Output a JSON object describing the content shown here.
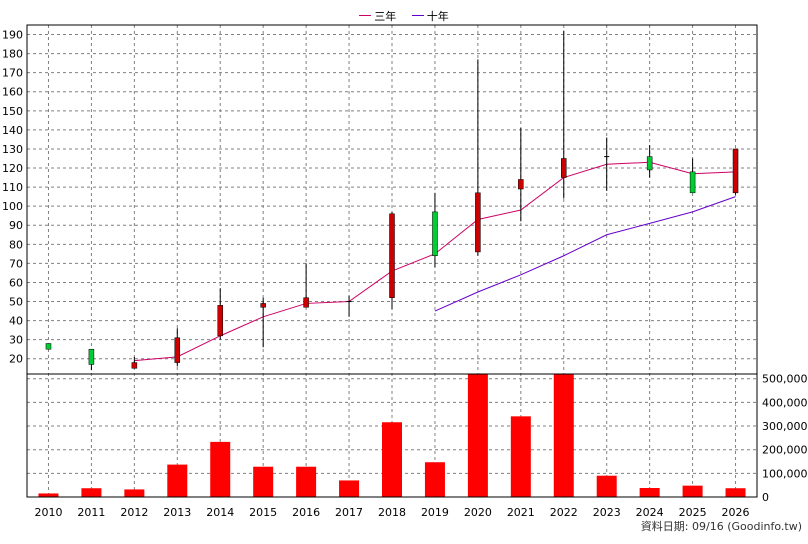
{
  "legend": {
    "items": [
      {
        "label": "三年",
        "color": "#cc0066"
      },
      {
        "label": "十年",
        "color": "#6600cc"
      }
    ]
  },
  "source": "資料日期: 09/16  (Goodinfo.tw)",
  "colors": {
    "up": "#00cc33",
    "down": "#cc0000",
    "flat": "#000000",
    "grid": "#808080",
    "volume": "#ff0000",
    "ma3": "#cc0066",
    "ma10": "#6600cc"
  },
  "chart_data": [
    {
      "type": "candlestick",
      "categories": [
        "2010",
        "2011",
        "2012",
        "2013",
        "2014",
        "2015",
        "2016",
        "2017",
        "2018",
        "2019",
        "2020",
        "2021",
        "2022",
        "2023",
        "2024",
        "2025",
        "2026"
      ],
      "y_ticks": [
        20,
        30,
        40,
        50,
        60,
        70,
        80,
        90,
        100,
        110,
        120,
        130,
        140,
        150,
        160,
        170,
        180,
        190
      ],
      "ylim": [
        12,
        195
      ],
      "grid": true,
      "candles": [
        {
          "o": 25,
          "h": 28,
          "l": 25,
          "c": 28
        },
        {
          "o": 17,
          "h": 25,
          "l": 14,
          "c": 25
        },
        {
          "o": 18,
          "h": 21,
          "l": 15,
          "c": 15
        },
        {
          "o": 31,
          "h": 36,
          "l": 16,
          "c": 18
        },
        {
          "o": 48,
          "h": 57,
          "l": 30,
          "c": 32
        },
        {
          "o": 49,
          "h": 52,
          "l": 26,
          "c": 47
        },
        {
          "o": 52,
          "h": 70,
          "l": 47,
          "c": 47
        },
        {
          "o": 50,
          "h": 53,
          "l": 42,
          "c": 50
        },
        {
          "o": 96,
          "h": 97,
          "l": 46,
          "c": 52
        },
        {
          "o": 74,
          "h": 107,
          "l": 68,
          "c": 97
        },
        {
          "o": 107,
          "h": 177,
          "l": 74,
          "c": 76
        },
        {
          "o": 114,
          "h": 141,
          "l": 92,
          "c": 109
        },
        {
          "o": 125,
          "h": 192,
          "l": 104,
          "c": 115
        },
        {
          "o": 126,
          "h": 136,
          "l": 108,
          "c": 126
        },
        {
          "o": 119,
          "h": 132,
          "l": 115,
          "c": 126
        },
        {
          "o": 107,
          "h": 125,
          "l": 107,
          "c": 118
        },
        {
          "o": 130,
          "h": 130,
          "l": 106,
          "c": 107
        }
      ],
      "series": [
        {
          "name": "三年",
          "values": [
            null,
            null,
            19,
            21,
            32,
            42,
            49,
            50,
            66,
            75,
            93,
            98,
            115,
            122,
            123,
            117,
            118
          ]
        },
        {
          "name": "十年",
          "values": [
            null,
            null,
            null,
            null,
            null,
            null,
            null,
            null,
            null,
            45,
            55,
            64,
            74,
            85,
            91,
            97,
            105
          ]
        }
      ]
    },
    {
      "type": "bar",
      "categories": [
        "2010",
        "2011",
        "2012",
        "2013",
        "2014",
        "2015",
        "2016",
        "2017",
        "2018",
        "2019",
        "2020",
        "2021",
        "2022",
        "2023",
        "2024",
        "2025",
        "2026"
      ],
      "values": [
        15000,
        37000,
        32000,
        137000,
        233000,
        128000,
        128000,
        70000,
        316000,
        147000,
        520000,
        341000,
        520000,
        90000,
        38000,
        48000,
        37000
      ],
      "y_ticks": [
        "0",
        "100,000",
        "200,000",
        "300,000",
        "400,000",
        "500,000"
      ],
      "y_tick_values": [
        0,
        100000,
        200000,
        300000,
        400000,
        500000
      ],
      "ylim": [
        0,
        520000
      ],
      "grid": true
    }
  ]
}
